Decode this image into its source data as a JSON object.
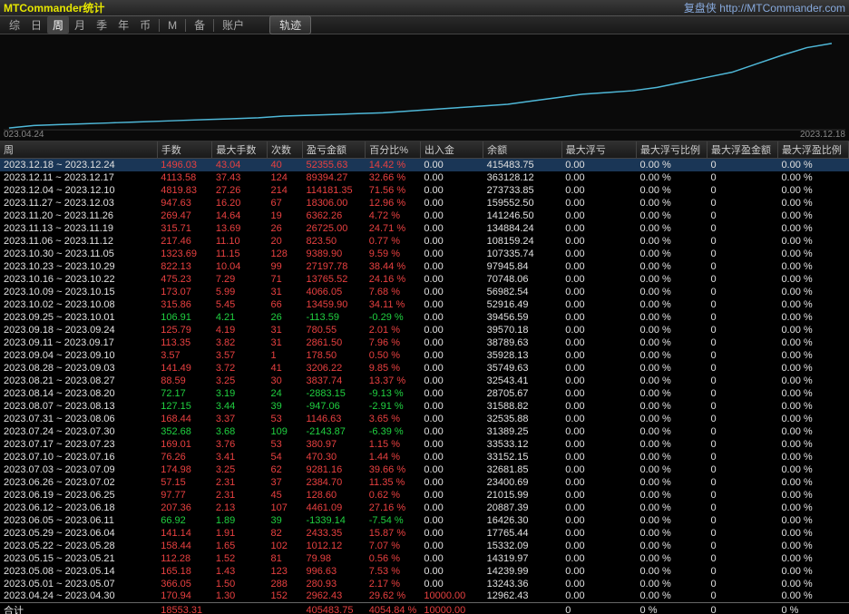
{
  "title": "MTCommander统计",
  "brand": "复盘侠",
  "url": "http://MTCommander.com",
  "toolbar": {
    "items": [
      "综",
      "日",
      "周",
      "月",
      "季",
      "年",
      "币",
      "M",
      "备",
      "账户"
    ],
    "active_index": 2,
    "track": "轨迹"
  },
  "chart": {
    "type": "line",
    "x_start_label": "023.04.24",
    "x_end_label": "2023.12.18",
    "line_color": "#4fb8d8",
    "background_color": "#0a0a0a",
    "points": [
      [
        0,
        0.0
      ],
      [
        0.03,
        0.03
      ],
      [
        0.06,
        0.04
      ],
      [
        0.09,
        0.05
      ],
      [
        0.12,
        0.06
      ],
      [
        0.15,
        0.07
      ],
      [
        0.18,
        0.08
      ],
      [
        0.21,
        0.09
      ],
      [
        0.24,
        0.1
      ],
      [
        0.27,
        0.11
      ],
      [
        0.3,
        0.12
      ],
      [
        0.33,
        0.14
      ],
      [
        0.36,
        0.15
      ],
      [
        0.39,
        0.16
      ],
      [
        0.42,
        0.17
      ],
      [
        0.45,
        0.18
      ],
      [
        0.48,
        0.2
      ],
      [
        0.51,
        0.22
      ],
      [
        0.54,
        0.24
      ],
      [
        0.57,
        0.26
      ],
      [
        0.6,
        0.28
      ],
      [
        0.63,
        0.32
      ],
      [
        0.66,
        0.36
      ],
      [
        0.69,
        0.4
      ],
      [
        0.72,
        0.42
      ],
      [
        0.75,
        0.44
      ],
      [
        0.78,
        0.48
      ],
      [
        0.81,
        0.54
      ],
      [
        0.84,
        0.6
      ],
      [
        0.87,
        0.66
      ],
      [
        0.9,
        0.76
      ],
      [
        0.93,
        0.86
      ],
      [
        0.96,
        0.95
      ],
      [
        0.99,
        1.0
      ]
    ]
  },
  "columns": [
    {
      "key": "date",
      "label": "周",
      "w": 160
    },
    {
      "key": "lots",
      "label": "手数",
      "w": 56
    },
    {
      "key": "maxlots",
      "label": "最大手数",
      "w": 56
    },
    {
      "key": "count",
      "label": "次数",
      "w": 36
    },
    {
      "key": "pl",
      "label": "盈亏金额",
      "w": 64
    },
    {
      "key": "pct",
      "label": "百分比%",
      "w": 56
    },
    {
      "key": "depwd",
      "label": "出入金",
      "w": 64
    },
    {
      "key": "balance",
      "label": "余额",
      "w": 80
    },
    {
      "key": "maxfloat",
      "label": "最大浮亏",
      "w": 76
    },
    {
      "key": "maxfloatpct",
      "label": "最大浮亏比例",
      "w": 72
    },
    {
      "key": "maxprofit",
      "label": "最大浮盈金额",
      "w": 72
    },
    {
      "key": "maxprofitpct",
      "label": "最大浮盈比例",
      "w": 72
    }
  ],
  "color_red": "#e84040",
  "color_green": "#20d040",
  "color_white": "#e0e0e0",
  "rows": [
    {
      "date": "2023.12.18 ~ 2023.12.24",
      "lots": "1496.03",
      "maxlots": "43.04",
      "count": "40",
      "pl": "52355.63",
      "pct": "14.42 %",
      "depwd": "0.00",
      "balance": "415483.75",
      "sel": true
    },
    {
      "date": "2023.12.11 ~ 2023.12.17",
      "lots": "4113.58",
      "maxlots": "37.43",
      "count": "124",
      "pl": "89394.27",
      "pct": "32.66 %",
      "depwd": "0.00",
      "balance": "363128.12"
    },
    {
      "date": "2023.12.04 ~ 2023.12.10",
      "lots": "4819.83",
      "maxlots": "27.26",
      "count": "214",
      "pl": "114181.35",
      "pct": "71.56 %",
      "depwd": "0.00",
      "balance": "273733.85"
    },
    {
      "date": "2023.11.27 ~ 2023.12.03",
      "lots": "947.63",
      "maxlots": "16.20",
      "count": "67",
      "pl": "18306.00",
      "pct": "12.96 %",
      "depwd": "0.00",
      "balance": "159552.50"
    },
    {
      "date": "2023.11.20 ~ 2023.11.26",
      "lots": "269.47",
      "maxlots": "14.64",
      "count": "19",
      "pl": "6362.26",
      "pct": "4.72 %",
      "depwd": "0.00",
      "balance": "141246.50"
    },
    {
      "date": "2023.11.13 ~ 2023.11.19",
      "lots": "315.71",
      "maxlots": "13.69",
      "count": "26",
      "pl": "26725.00",
      "pct": "24.71 %",
      "depwd": "0.00",
      "balance": "134884.24"
    },
    {
      "date": "2023.11.06 ~ 2023.11.12",
      "lots": "217.46",
      "maxlots": "11.10",
      "count": "20",
      "pl": "823.50",
      "pct": "0.77 %",
      "depwd": "0.00",
      "balance": "108159.24"
    },
    {
      "date": "2023.10.30 ~ 2023.11.05",
      "lots": "1323.69",
      "maxlots": "11.15",
      "count": "128",
      "pl": "9389.90",
      "pct": "9.59 %",
      "depwd": "0.00",
      "balance": "107335.74"
    },
    {
      "date": "2023.10.23 ~ 2023.10.29",
      "lots": "822.13",
      "maxlots": "10.04",
      "count": "99",
      "pl": "27197.78",
      "pct": "38.44 %",
      "depwd": "0.00",
      "balance": "97945.84"
    },
    {
      "date": "2023.10.16 ~ 2023.10.22",
      "lots": "475.23",
      "maxlots": "7.29",
      "count": "71",
      "pl": "13765.52",
      "pct": "24.16 %",
      "depwd": "0.00",
      "balance": "70748.06"
    },
    {
      "date": "2023.10.09 ~ 2023.10.15",
      "lots": "173.07",
      "maxlots": "5.99",
      "count": "31",
      "pl": "4066.05",
      "pct": "7.68 %",
      "depwd": "0.00",
      "balance": "56982.54"
    },
    {
      "date": "2023.10.02 ~ 2023.10.08",
      "lots": "315.86",
      "maxlots": "5.45",
      "count": "66",
      "pl": "13459.90",
      "pct": "34.11 %",
      "depwd": "0.00",
      "balance": "52916.49"
    },
    {
      "date": "2023.09.25 ~ 2023.10.01",
      "lots": "106.91",
      "maxlots": "4.21",
      "count": "26",
      "pl": "-113.59",
      "pct": "-0.29 %",
      "depwd": "0.00",
      "balance": "39456.59",
      "green": true
    },
    {
      "date": "2023.09.18 ~ 2023.09.24",
      "lots": "125.79",
      "maxlots": "4.19",
      "count": "31",
      "pl": "780.55",
      "pct": "2.01 %",
      "depwd": "0.00",
      "balance": "39570.18"
    },
    {
      "date": "2023.09.11 ~ 2023.09.17",
      "lots": "113.35",
      "maxlots": "3.82",
      "count": "31",
      "pl": "2861.50",
      "pct": "7.96 %",
      "depwd": "0.00",
      "balance": "38789.63"
    },
    {
      "date": "2023.09.04 ~ 2023.09.10",
      "lots": "3.57",
      "maxlots": "3.57",
      "count": "1",
      "pl": "178.50",
      "pct": "0.50 %",
      "depwd": "0.00",
      "balance": "35928.13"
    },
    {
      "date": "2023.08.28 ~ 2023.09.03",
      "lots": "141.49",
      "maxlots": "3.72",
      "count": "41",
      "pl": "3206.22",
      "pct": "9.85 %",
      "depwd": "0.00",
      "balance": "35749.63"
    },
    {
      "date": "2023.08.21 ~ 2023.08.27",
      "lots": "88.59",
      "maxlots": "3.25",
      "count": "30",
      "pl": "3837.74",
      "pct": "13.37 %",
      "depwd": "0.00",
      "balance": "32543.41"
    },
    {
      "date": "2023.08.14 ~ 2023.08.20",
      "lots": "72.17",
      "maxlots": "3.19",
      "count": "24",
      "pl": "-2883.15",
      "pct": "-9.13 %",
      "depwd": "0.00",
      "balance": "28705.67",
      "green": true
    },
    {
      "date": "2023.08.07 ~ 2023.08.13",
      "lots": "127.15",
      "maxlots": "3.44",
      "count": "39",
      "pl": "-947.06",
      "pct": "-2.91 %",
      "depwd": "0.00",
      "balance": "31588.82",
      "green": true
    },
    {
      "date": "2023.07.31 ~ 2023.08.06",
      "lots": "168.44",
      "maxlots": "3.37",
      "count": "53",
      "pl": "1146.63",
      "pct": "3.65 %",
      "depwd": "0.00",
      "balance": "32535.88"
    },
    {
      "date": "2023.07.24 ~ 2023.07.30",
      "lots": "352.68",
      "maxlots": "3.68",
      "count": "109",
      "pl": "-2143.87",
      "pct": "-6.39 %",
      "depwd": "0.00",
      "balance": "31389.25",
      "green": true
    },
    {
      "date": "2023.07.17 ~ 2023.07.23",
      "lots": "169.01",
      "maxlots": "3.76",
      "count": "53",
      "pl": "380.97",
      "pct": "1.15 %",
      "depwd": "0.00",
      "balance": "33533.12"
    },
    {
      "date": "2023.07.10 ~ 2023.07.16",
      "lots": "76.26",
      "maxlots": "3.41",
      "count": "54",
      "pl": "470.30",
      "pct": "1.44 %",
      "depwd": "0.00",
      "balance": "33152.15"
    },
    {
      "date": "2023.07.03 ~ 2023.07.09",
      "lots": "174.98",
      "maxlots": "3.25",
      "count": "62",
      "pl": "9281.16",
      "pct": "39.66 %",
      "depwd": "0.00",
      "balance": "32681.85"
    },
    {
      "date": "2023.06.26 ~ 2023.07.02",
      "lots": "57.15",
      "maxlots": "2.31",
      "count": "37",
      "pl": "2384.70",
      "pct": "11.35 %",
      "depwd": "0.00",
      "balance": "23400.69"
    },
    {
      "date": "2023.06.19 ~ 2023.06.25",
      "lots": "97.77",
      "maxlots": "2.31",
      "count": "45",
      "pl": "128.60",
      "pct": "0.62 %",
      "depwd": "0.00",
      "balance": "21015.99"
    },
    {
      "date": "2023.06.12 ~ 2023.06.18",
      "lots": "207.36",
      "maxlots": "2.13",
      "count": "107",
      "pl": "4461.09",
      "pct": "27.16 %",
      "depwd": "0.00",
      "balance": "20887.39"
    },
    {
      "date": "2023.06.05 ~ 2023.06.11",
      "lots": "66.92",
      "maxlots": "1.89",
      "count": "39",
      "pl": "-1339.14",
      "pct": "-7.54 %",
      "depwd": "0.00",
      "balance": "16426.30",
      "green": true
    },
    {
      "date": "2023.05.29 ~ 2023.06.04",
      "lots": "141.14",
      "maxlots": "1.91",
      "count": "82",
      "pl": "2433.35",
      "pct": "15.87 %",
      "depwd": "0.00",
      "balance": "17765.44"
    },
    {
      "date": "2023.05.22 ~ 2023.05.28",
      "lots": "158.44",
      "maxlots": "1.65",
      "count": "102",
      "pl": "1012.12",
      "pct": "7.07 %",
      "depwd": "0.00",
      "balance": "15332.09"
    },
    {
      "date": "2023.05.15 ~ 2023.05.21",
      "lots": "112.28",
      "maxlots": "1.52",
      "count": "81",
      "pl": "79.98",
      "pct": "0.56 %",
      "depwd": "0.00",
      "balance": "14319.97"
    },
    {
      "date": "2023.05.08 ~ 2023.05.14",
      "lots": "165.18",
      "maxlots": "1.43",
      "count": "123",
      "pl": "996.63",
      "pct": "7.53 %",
      "depwd": "0.00",
      "balance": "14239.99"
    },
    {
      "date": "2023.05.01 ~ 2023.05.07",
      "lots": "366.05",
      "maxlots": "1.50",
      "count": "288",
      "pl": "280.93",
      "pct": "2.17 %",
      "depwd": "0.00",
      "balance": "13243.36"
    },
    {
      "date": "2023.04.24 ~ 2023.04.30",
      "lots": "170.94",
      "maxlots": "1.30",
      "count": "152",
      "pl": "2962.43",
      "pct": "29.62 %",
      "depwd": "10000.00",
      "balance": "12962.43",
      "depwd_red": true
    }
  ],
  "total": {
    "label": "合计",
    "lots": "18553.31",
    "balance": "405483.75",
    "pct": "4054.84 %",
    "depwd": "10000.00",
    "zero": "0",
    "zeropct": "0 %"
  }
}
